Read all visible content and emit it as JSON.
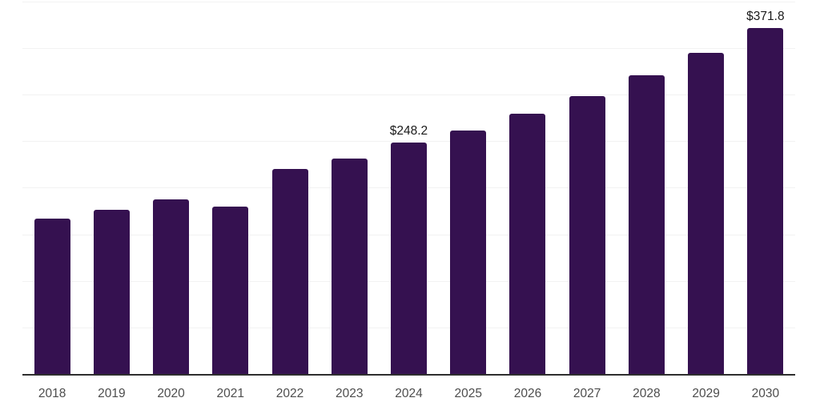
{
  "chart_data": {
    "type": "bar",
    "title": "",
    "xlabel": "",
    "ylabel": "",
    "categories": [
      "2018",
      "2019",
      "2020",
      "2021",
      "2022",
      "2023",
      "2024",
      "2025",
      "2026",
      "2027",
      "2028",
      "2029",
      "2030"
    ],
    "values": [
      167.2,
      176.0,
      187.7,
      180.0,
      219.8,
      231.0,
      248.2,
      261.5,
      279.2,
      298.5,
      320.6,
      344.6,
      371.8
    ],
    "value_labels": [
      "",
      "",
      "",
      "",
      "",
      "",
      "$248.2",
      "",
      "",
      "",
      "",
      "",
      "$371.8"
    ],
    "ylim": [
      0,
      400
    ],
    "gridline_step": 50,
    "grid": true,
    "legend_position": "none",
    "bar_color": "#351150",
    "colors": {
      "axis_line": "#2e2e2e",
      "gridline": "#f2f2f2",
      "tick_label": "#4d4d4d",
      "value_label": "#1a1a1a",
      "background": "#ffffff"
    }
  }
}
